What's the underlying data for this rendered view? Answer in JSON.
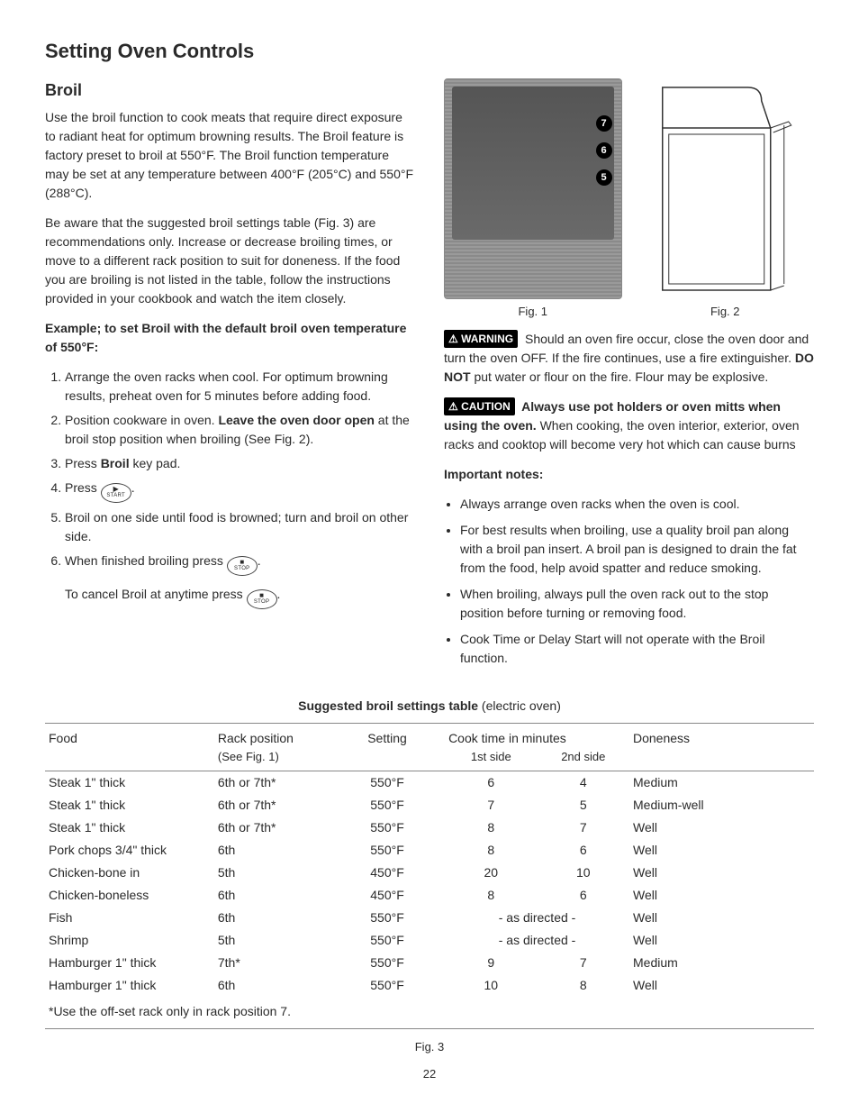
{
  "page_title": "Setting Oven Controls",
  "section_title": "Broil",
  "intro1": "Use the broil function to cook meats that require direct exposure to radiant heat for optimum browning results. The Broil feature is factory preset to broil at 550°F. The Broil function temperature may be set at any temperature between 400°F (205°C) and 550°F (288°C).",
  "intro2": "Be aware that the suggested broil settings table (Fig. 3) are recommendations only. Increase or decrease broiling times, or move to a different rack position to suit for doneness. If the food you are broiling is not listed in the table, follow the instructions provided in your cookbook and watch the item closely.",
  "example_heading": "Example; to set Broil with the default broil oven temperature of 550°F:",
  "steps": {
    "s1": "Arrange the oven racks when cool. For optimum browning results, preheat oven for 5 minutes before adding food.",
    "s2a": "Position cookware in oven. ",
    "s2b": "Leave the oven door open",
    "s2c": " at the broil stop position when broiling (See Fig. 2).",
    "s3a": "Press ",
    "s3b": "Broil",
    "s3c": " key pad.",
    "s4a": "Press ",
    "s4b": ".",
    "s5": "Broil on one side until food is browned; turn and broil on other side.",
    "s6a": "When finished broiling press ",
    "s6b": ".",
    "s6c": "To cancel Broil at anytime press ",
    "s6d": "."
  },
  "buttons": {
    "start_sym": "▶",
    "start_lbl": "START",
    "stop_sym": "■",
    "stop_lbl": "STOP"
  },
  "fig1_caption": "Fig. 1",
  "fig2_caption": "Fig. 2",
  "fig3_caption": "Fig. 3",
  "rack_labels": {
    "r7": "7",
    "r6": "6",
    "r5": "5"
  },
  "warning_label": "⚠ WARNING",
  "warning_body_a": " Should an oven fire occur, close the oven door and turn the oven OFF. If the fire continues, use a fire extinguisher. ",
  "warning_body_b": "DO NOT",
  "warning_body_c": " put water or flour on the fire. Flour may be explosive.",
  "caution_label": "⚠ CAUTION",
  "caution_body_a": " Always use pot holders or oven mitts when using the oven.",
  "caution_body_b": " When cooking, the oven interior, exterior, oven racks and cooktop will become very hot which can cause burns",
  "notes_heading": "Important notes:",
  "notes": {
    "n1": "Always arrange oven racks when the oven is cool.",
    "n2": "For best results when broiling, use a quality broil pan along with a broil pan insert. A broil pan is designed to drain the fat from the food, help avoid spatter and reduce smoking.",
    "n3": "When broiling, always pull the oven rack out to the stop position before turning or removing food.",
    "n4": "Cook Time or Delay Start will not operate with the Broil function."
  },
  "table": {
    "title_bold": "Suggested broil settings table",
    "title_rest": " (electric oven)",
    "headers": {
      "food": "Food",
      "rack": "Rack position",
      "rack_sub": "(See Fig. 1)",
      "setting": "Setting",
      "cook": "Cook time in minutes",
      "side1": "1st side",
      "side2": "2nd side",
      "done": "Doneness"
    },
    "rows": [
      {
        "food": "Steak 1\" thick",
        "rack": "6th or 7th*",
        "setting": "550°F",
        "s1": "6",
        "s2": "4",
        "done": "Medium"
      },
      {
        "food": "Steak 1\" thick",
        "rack": "6th or 7th*",
        "setting": "550°F",
        "s1": "7",
        "s2": "5",
        "done": "Medium-well"
      },
      {
        "food": "Steak 1\" thick",
        "rack": "6th or 7th*",
        "setting": "550°F",
        "s1": "8",
        "s2": "7",
        "done": "Well"
      },
      {
        "food": "Pork chops 3/4\" thick",
        "rack": "6th",
        "setting": "550°F",
        "s1": "8",
        "s2": "6",
        "done": "Well"
      },
      {
        "food": "Chicken-bone in",
        "rack": "5th",
        "setting": "450°F",
        "s1": "20",
        "s2": "10",
        "done": "Well"
      },
      {
        "food": "Chicken-boneless",
        "rack": "6th",
        "setting": "450°F",
        "s1": "8",
        "s2": "6",
        "done": "Well"
      },
      {
        "food": "Fish",
        "rack": "6th",
        "setting": "550°F",
        "s1": "",
        "s2": "",
        "merged": "- as directed -",
        "done": "Well"
      },
      {
        "food": "Shrimp",
        "rack": "5th",
        "setting": "550°F",
        "s1": "",
        "s2": "",
        "merged": "- as directed -",
        "done": "Well"
      },
      {
        "food": "Hamburger 1\" thick",
        "rack": "7th*",
        "setting": "550°F",
        "s1": "9",
        "s2": "7",
        "done": "Medium"
      },
      {
        "food": "Hamburger 1\" thick",
        "rack": "6th",
        "setting": "550°F",
        "s1": "10",
        "s2": "8",
        "done": "Well"
      }
    ],
    "footnote": "*Use the off-set rack only in rack position 7."
  },
  "page_number": "22"
}
